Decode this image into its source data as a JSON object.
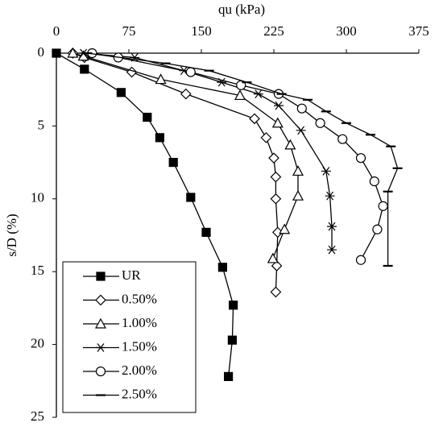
{
  "chart_data": {
    "type": "line",
    "x_label": "qu (kPa)",
    "y_label": "s/D (%)",
    "x_axis_position": "top",
    "y_inverted": true,
    "grid": false,
    "legend": "lower left",
    "xlim": [
      0,
      375
    ],
    "xticks": [
      0,
      75,
      150,
      225,
      300,
      375
    ],
    "ylim": [
      0,
      25
    ],
    "yticks": [
      0,
      5,
      10,
      15,
      20,
      25
    ],
    "series": [
      {
        "name": "UR",
        "color": "#000000",
        "marker": "square-filled",
        "x": [
          0,
          29,
          67,
          94,
          107,
          121,
          139,
          155,
          172,
          183,
          182,
          178
        ],
        "values": [
          0,
          1.1,
          2.7,
          4.4,
          5.8,
          7.5,
          9.9,
          12.3,
          14.7,
          17.3,
          19.7,
          22.2
        ]
      },
      {
        "name": "0.50%",
        "color": "#000000",
        "marker": "diamond",
        "x": [
          17,
          29,
          78,
          134,
          205,
          217,
          225,
          227,
          227,
          229,
          228,
          227
        ],
        "values": [
          0,
          0.3,
          1.3,
          2.8,
          4.5,
          5.8,
          7.2,
          8.5,
          10,
          12.3,
          14.6,
          16.4
        ]
      },
      {
        "name": "1.00%",
        "color": "#000000",
        "marker": "triangle",
        "x": [
          17,
          28,
          108,
          190,
          229,
          242,
          250,
          250,
          236,
          224
        ],
        "values": [
          0,
          0.2,
          1.8,
          2.9,
          4.8,
          6.3,
          8.1,
          9.8,
          12.1,
          14.1
        ]
      },
      {
        "name": "1.50%",
        "color": "#000000",
        "marker": "asterisk",
        "x": [
          28,
          81,
          132,
          171,
          209,
          230,
          253,
          279,
          283,
          285,
          285
        ],
        "values": [
          0,
          0.3,
          1.2,
          2,
          2.8,
          3.6,
          5.3,
          8.1,
          9.8,
          11.9,
          13.5
        ]
      },
      {
        "name": "2.00%",
        "color": "#000000",
        "marker": "circle",
        "x": [
          37,
          64,
          139,
          191,
          230,
          254,
          273,
          296,
          315,
          329,
          338,
          332,
          315
        ],
        "values": [
          0,
          0.3,
          1.3,
          2.2,
          2.8,
          3.8,
          4.8,
          5.9,
          7.2,
          8.8,
          10.5,
          12.1,
          14.2
        ]
      },
      {
        "name": "2.50%",
        "color": "#000000",
        "marker": "dash",
        "x": [
          32,
          113,
          158,
          197,
          233,
          260,
          279,
          300,
          325,
          346,
          353,
          343,
          343
        ],
        "values": [
          0,
          0.7,
          1.2,
          2,
          2.8,
          3.2,
          4,
          4.8,
          5.6,
          6.4,
          7.9,
          9.5,
          14.6
        ]
      }
    ]
  }
}
